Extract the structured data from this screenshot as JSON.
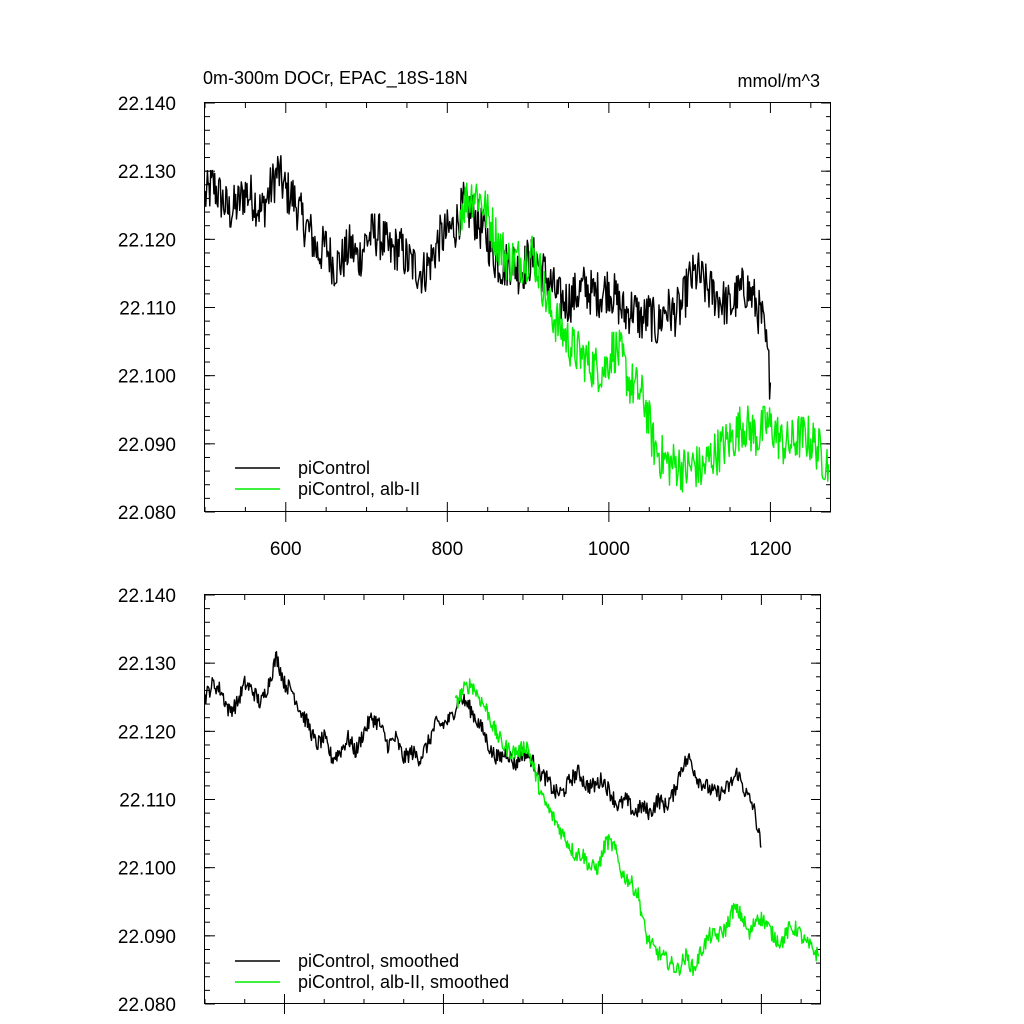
{
  "chart_data": [
    {
      "type": "line",
      "title": "0m-300m DOCr, EPAC_18S-18N",
      "units": "mmol/m^3",
      "xlim": [
        500,
        1275
      ],
      "ylim": [
        22.08,
        22.14
      ],
      "x_ticks": [
        600,
        800,
        1000,
        1200
      ],
      "x_tick_labels": [
        "600",
        "800",
        "1000",
        "1200"
      ],
      "y_ticks": [
        22.08,
        22.09,
        22.1,
        22.11,
        22.12,
        22.13,
        22.14
      ],
      "y_tick_labels": [
        "22.080",
        "22.090",
        "22.100",
        "22.110",
        "22.120",
        "22.130",
        "22.140"
      ],
      "grid": false,
      "legend_position": "bottom-left",
      "series": [
        {
          "name": "piControl",
          "color": "#000000",
          "noise": 0.0035,
          "points": [
            [
              500,
              22.126
            ],
            [
              510,
              22.128
            ],
            [
              520,
              22.126
            ],
            [
              530,
              22.124
            ],
            [
              540,
              22.125
            ],
            [
              550,
              22.127
            ],
            [
              560,
              22.126
            ],
            [
              570,
              22.124
            ],
            [
              580,
              22.127
            ],
            [
              590,
              22.13
            ],
            [
              600,
              22.127
            ],
            [
              610,
              22.126
            ],
            [
              620,
              22.123
            ],
            [
              630,
              22.121
            ],
            [
              640,
              22.118
            ],
            [
              650,
              22.119
            ],
            [
              660,
              22.116
            ],
            [
              670,
              22.117
            ],
            [
              680,
              22.119
            ],
            [
              690,
              22.117
            ],
            [
              700,
              22.12
            ],
            [
              710,
              22.121
            ],
            [
              720,
              22.12
            ],
            [
              730,
              22.118
            ],
            [
              740,
              22.119
            ],
            [
              750,
              22.117
            ],
            [
              760,
              22.116
            ],
            [
              770,
              22.115
            ],
            [
              780,
              22.117
            ],
            [
              790,
              22.12
            ],
            [
              800,
              22.121
            ],
            [
              810,
              22.122
            ],
            [
              820,
              22.125
            ],
            [
              830,
              22.124
            ],
            [
              840,
              22.122
            ],
            [
              850,
              22.12
            ],
            [
              860,
              22.117
            ],
            [
              870,
              22.116
            ],
            [
              880,
              22.117
            ],
            [
              890,
              22.115
            ],
            [
              900,
              22.117
            ],
            [
              910,
              22.117
            ],
            [
              920,
              22.115
            ],
            [
              930,
              22.113
            ],
            [
              940,
              22.111
            ],
            [
              950,
              22.111
            ],
            [
              960,
              22.112
            ],
            [
              970,
              22.113
            ],
            [
              980,
              22.112
            ],
            [
              990,
              22.112
            ],
            [
              1000,
              22.113
            ],
            [
              1010,
              22.111
            ],
            [
              1020,
              22.109
            ],
            [
              1030,
              22.11
            ],
            [
              1040,
              22.108
            ],
            [
              1050,
              22.109
            ],
            [
              1060,
              22.107
            ],
            [
              1070,
              22.11
            ],
            [
              1080,
              22.109
            ],
            [
              1090,
              22.11
            ],
            [
              1100,
              22.114
            ],
            [
              1110,
              22.115
            ],
            [
              1120,
              22.113
            ],
            [
              1130,
              22.112
            ],
            [
              1140,
              22.111
            ],
            [
              1150,
              22.11
            ],
            [
              1160,
              22.112
            ],
            [
              1170,
              22.113
            ],
            [
              1180,
              22.111
            ],
            [
              1190,
              22.108
            ],
            [
              1195,
              22.104
            ],
            [
              1200,
              22.099
            ]
          ]
        },
        {
          "name": "piControl, alb-II",
          "color": "#00ee00",
          "noise": 0.0035,
          "points": [
            [
              815,
              22.124
            ],
            [
              825,
              22.126
            ],
            [
              835,
              22.127
            ],
            [
              845,
              22.125
            ],
            [
              855,
              22.122
            ],
            [
              865,
              22.119
            ],
            [
              875,
              22.117
            ],
            [
              885,
              22.117
            ],
            [
              895,
              22.117
            ],
            [
              905,
              22.118
            ],
            [
              915,
              22.115
            ],
            [
              925,
              22.11
            ],
            [
              935,
              22.108
            ],
            [
              945,
              22.106
            ],
            [
              955,
              22.104
            ],
            [
              965,
              22.103
            ],
            [
              975,
              22.102
            ],
            [
              985,
              22.101
            ],
            [
              995,
              22.101
            ],
            [
              1005,
              22.104
            ],
            [
              1015,
              22.103
            ],
            [
              1025,
              22.099
            ],
            [
              1035,
              22.098
            ],
            [
              1045,
              22.096
            ],
            [
              1055,
              22.09
            ],
            [
              1065,
              22.088
            ],
            [
              1075,
              22.087
            ],
            [
              1085,
              22.087
            ],
            [
              1095,
              22.086
            ],
            [
              1105,
              22.087
            ],
            [
              1115,
              22.086
            ],
            [
              1125,
              22.088
            ],
            [
              1135,
              22.089
            ],
            [
              1145,
              22.09
            ],
            [
              1155,
              22.091
            ],
            [
              1165,
              22.093
            ],
            [
              1175,
              22.092
            ],
            [
              1185,
              22.091
            ],
            [
              1195,
              22.093
            ],
            [
              1205,
              22.092
            ],
            [
              1215,
              22.09
            ],
            [
              1225,
              22.09
            ],
            [
              1235,
              22.091
            ],
            [
              1245,
              22.091
            ],
            [
              1255,
              22.09
            ],
            [
              1265,
              22.088
            ],
            [
              1272,
              22.087
            ]
          ]
        }
      ]
    },
    {
      "type": "line",
      "title": "",
      "units": "",
      "xlim": [
        500,
        1275
      ],
      "ylim": [
        22.08,
        22.14
      ],
      "x_ticks": [
        600,
        800,
        1000,
        1200
      ],
      "x_tick_labels": [],
      "y_ticks": [
        22.08,
        22.09,
        22.1,
        22.11,
        22.12,
        22.13,
        22.14
      ],
      "y_tick_labels": [
        "22.080",
        "22.090",
        "22.100",
        "22.110",
        "22.120",
        "22.130",
        "22.140"
      ],
      "grid": false,
      "legend_position": "bottom-left",
      "series": [
        {
          "name": "piControl, smoothed",
          "color": "#000000",
          "noise": 0.0012,
          "points": [
            [
              500,
              22.125
            ],
            [
              510,
              22.127
            ],
            [
              520,
              22.126
            ],
            [
              530,
              22.123
            ],
            [
              540,
              22.124
            ],
            [
              550,
              22.127
            ],
            [
              560,
              22.126
            ],
            [
              570,
              22.124
            ],
            [
              580,
              22.127
            ],
            [
              590,
              22.131
            ],
            [
              600,
              22.127
            ],
            [
              610,
              22.126
            ],
            [
              620,
              22.123
            ],
            [
              630,
              22.121
            ],
            [
              640,
              22.118
            ],
            [
              650,
              22.119
            ],
            [
              660,
              22.116
            ],
            [
              670,
              22.117
            ],
            [
              680,
              22.119
            ],
            [
              690,
              22.117
            ],
            [
              700,
              22.12
            ],
            [
              710,
              22.122
            ],
            [
              720,
              22.121
            ],
            [
              730,
              22.118
            ],
            [
              740,
              22.119
            ],
            [
              750,
              22.116
            ],
            [
              760,
              22.117
            ],
            [
              770,
              22.116
            ],
            [
              780,
              22.118
            ],
            [
              790,
              22.121
            ],
            [
              800,
              22.121
            ],
            [
              810,
              22.122
            ],
            [
              820,
              22.125
            ],
            [
              830,
              22.124
            ],
            [
              840,
              22.122
            ],
            [
              850,
              22.12
            ],
            [
              860,
              22.117
            ],
            [
              870,
              22.116
            ],
            [
              880,
              22.117
            ],
            [
              890,
              22.115
            ],
            [
              900,
              22.117
            ],
            [
              910,
              22.116
            ],
            [
              920,
              22.114
            ],
            [
              930,
              22.113
            ],
            [
              940,
              22.111
            ],
            [
              950,
              22.111
            ],
            [
              960,
              22.113
            ],
            [
              970,
              22.114
            ],
            [
              980,
              22.112
            ],
            [
              990,
              22.112
            ],
            [
              1000,
              22.113
            ],
            [
              1010,
              22.111
            ],
            [
              1020,
              22.109
            ],
            [
              1030,
              22.11
            ],
            [
              1040,
              22.108
            ],
            [
              1050,
              22.109
            ],
            [
              1060,
              22.108
            ],
            [
              1070,
              22.11
            ],
            [
              1080,
              22.109
            ],
            [
              1090,
              22.111
            ],
            [
              1100,
              22.115
            ],
            [
              1110,
              22.116
            ],
            [
              1120,
              22.113
            ],
            [
              1130,
              22.112
            ],
            [
              1140,
              22.111
            ],
            [
              1150,
              22.111
            ],
            [
              1160,
              22.112
            ],
            [
              1170,
              22.114
            ],
            [
              1180,
              22.111
            ],
            [
              1190,
              22.109
            ],
            [
              1195,
              22.106
            ],
            [
              1200,
              22.103
            ]
          ]
        },
        {
          "name": "piControl, alb-II, smoothed",
          "color": "#00ee00",
          "noise": 0.0012,
          "points": [
            [
              815,
              22.124
            ],
            [
              825,
              22.126
            ],
            [
              835,
              22.127
            ],
            [
              845,
              22.125
            ],
            [
              855,
              22.123
            ],
            [
              865,
              22.12
            ],
            [
              875,
              22.118
            ],
            [
              885,
              22.117
            ],
            [
              895,
              22.117
            ],
            [
              905,
              22.118
            ],
            [
              915,
              22.114
            ],
            [
              925,
              22.11
            ],
            [
              935,
              22.108
            ],
            [
              945,
              22.106
            ],
            [
              955,
              22.104
            ],
            [
              965,
              22.102
            ],
            [
              975,
              22.102
            ],
            [
              985,
              22.1
            ],
            [
              995,
              22.1
            ],
            [
              1005,
              22.104
            ],
            [
              1015,
              22.103
            ],
            [
              1025,
              22.099
            ],
            [
              1035,
              22.098
            ],
            [
              1045,
              22.096
            ],
            [
              1055,
              22.09
            ],
            [
              1065,
              22.088
            ],
            [
              1075,
              22.087
            ],
            [
              1085,
              22.086
            ],
            [
              1095,
              22.085
            ],
            [
              1105,
              22.087
            ],
            [
              1115,
              22.085
            ],
            [
              1125,
              22.088
            ],
            [
              1135,
              22.09
            ],
            [
              1145,
              22.09
            ],
            [
              1155,
              22.091
            ],
            [
              1165,
              22.094
            ],
            [
              1175,
              22.093
            ],
            [
              1185,
              22.09
            ],
            [
              1195,
              22.093
            ],
            [
              1205,
              22.092
            ],
            [
              1215,
              22.09
            ],
            [
              1225,
              22.089
            ],
            [
              1235,
              22.091
            ],
            [
              1245,
              22.091
            ],
            [
              1255,
              22.089
            ],
            [
              1265,
              22.088
            ],
            [
              1272,
              22.087
            ]
          ]
        }
      ]
    }
  ]
}
